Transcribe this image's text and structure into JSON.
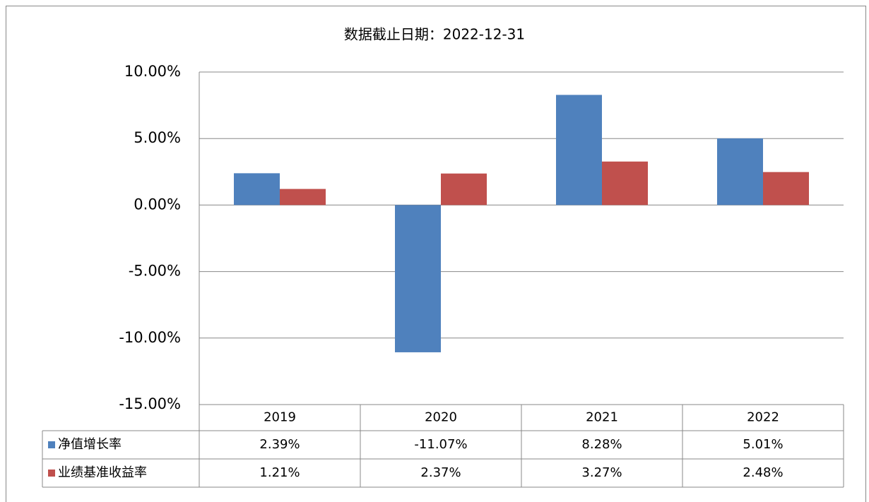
{
  "chart_data": {
    "type": "bar",
    "title": "数据截止日期：2022-12-31",
    "categories": [
      "2019",
      "2020",
      "2021",
      "2022"
    ],
    "series": [
      {
        "name": "净值增长率",
        "color": "#4f81bd",
        "values": [
          2.39,
          -11.07,
          8.28,
          5.01
        ],
        "value_labels": [
          "2.39%",
          "-11.07%",
          "8.28%",
          "5.01%"
        ]
      },
      {
        "name": "业绩基准收益率",
        "color": "#c0504d",
        "values": [
          1.21,
          2.37,
          3.27,
          2.48
        ],
        "value_labels": [
          "1.21%",
          "2.37%",
          "3.27%",
          "2.48%"
        ]
      }
    ],
    "ylim": [
      -15,
      10
    ],
    "yticks": [
      {
        "value": -15,
        "label": "-15.00%"
      },
      {
        "value": -10,
        "label": "-10.00%"
      },
      {
        "value": -5,
        "label": "-5.00%"
      },
      {
        "value": 0,
        "label": "0.00%"
      },
      {
        "value": 5,
        "label": "5.00%"
      },
      {
        "value": 10,
        "label": "10.00%"
      }
    ],
    "grid": true
  }
}
